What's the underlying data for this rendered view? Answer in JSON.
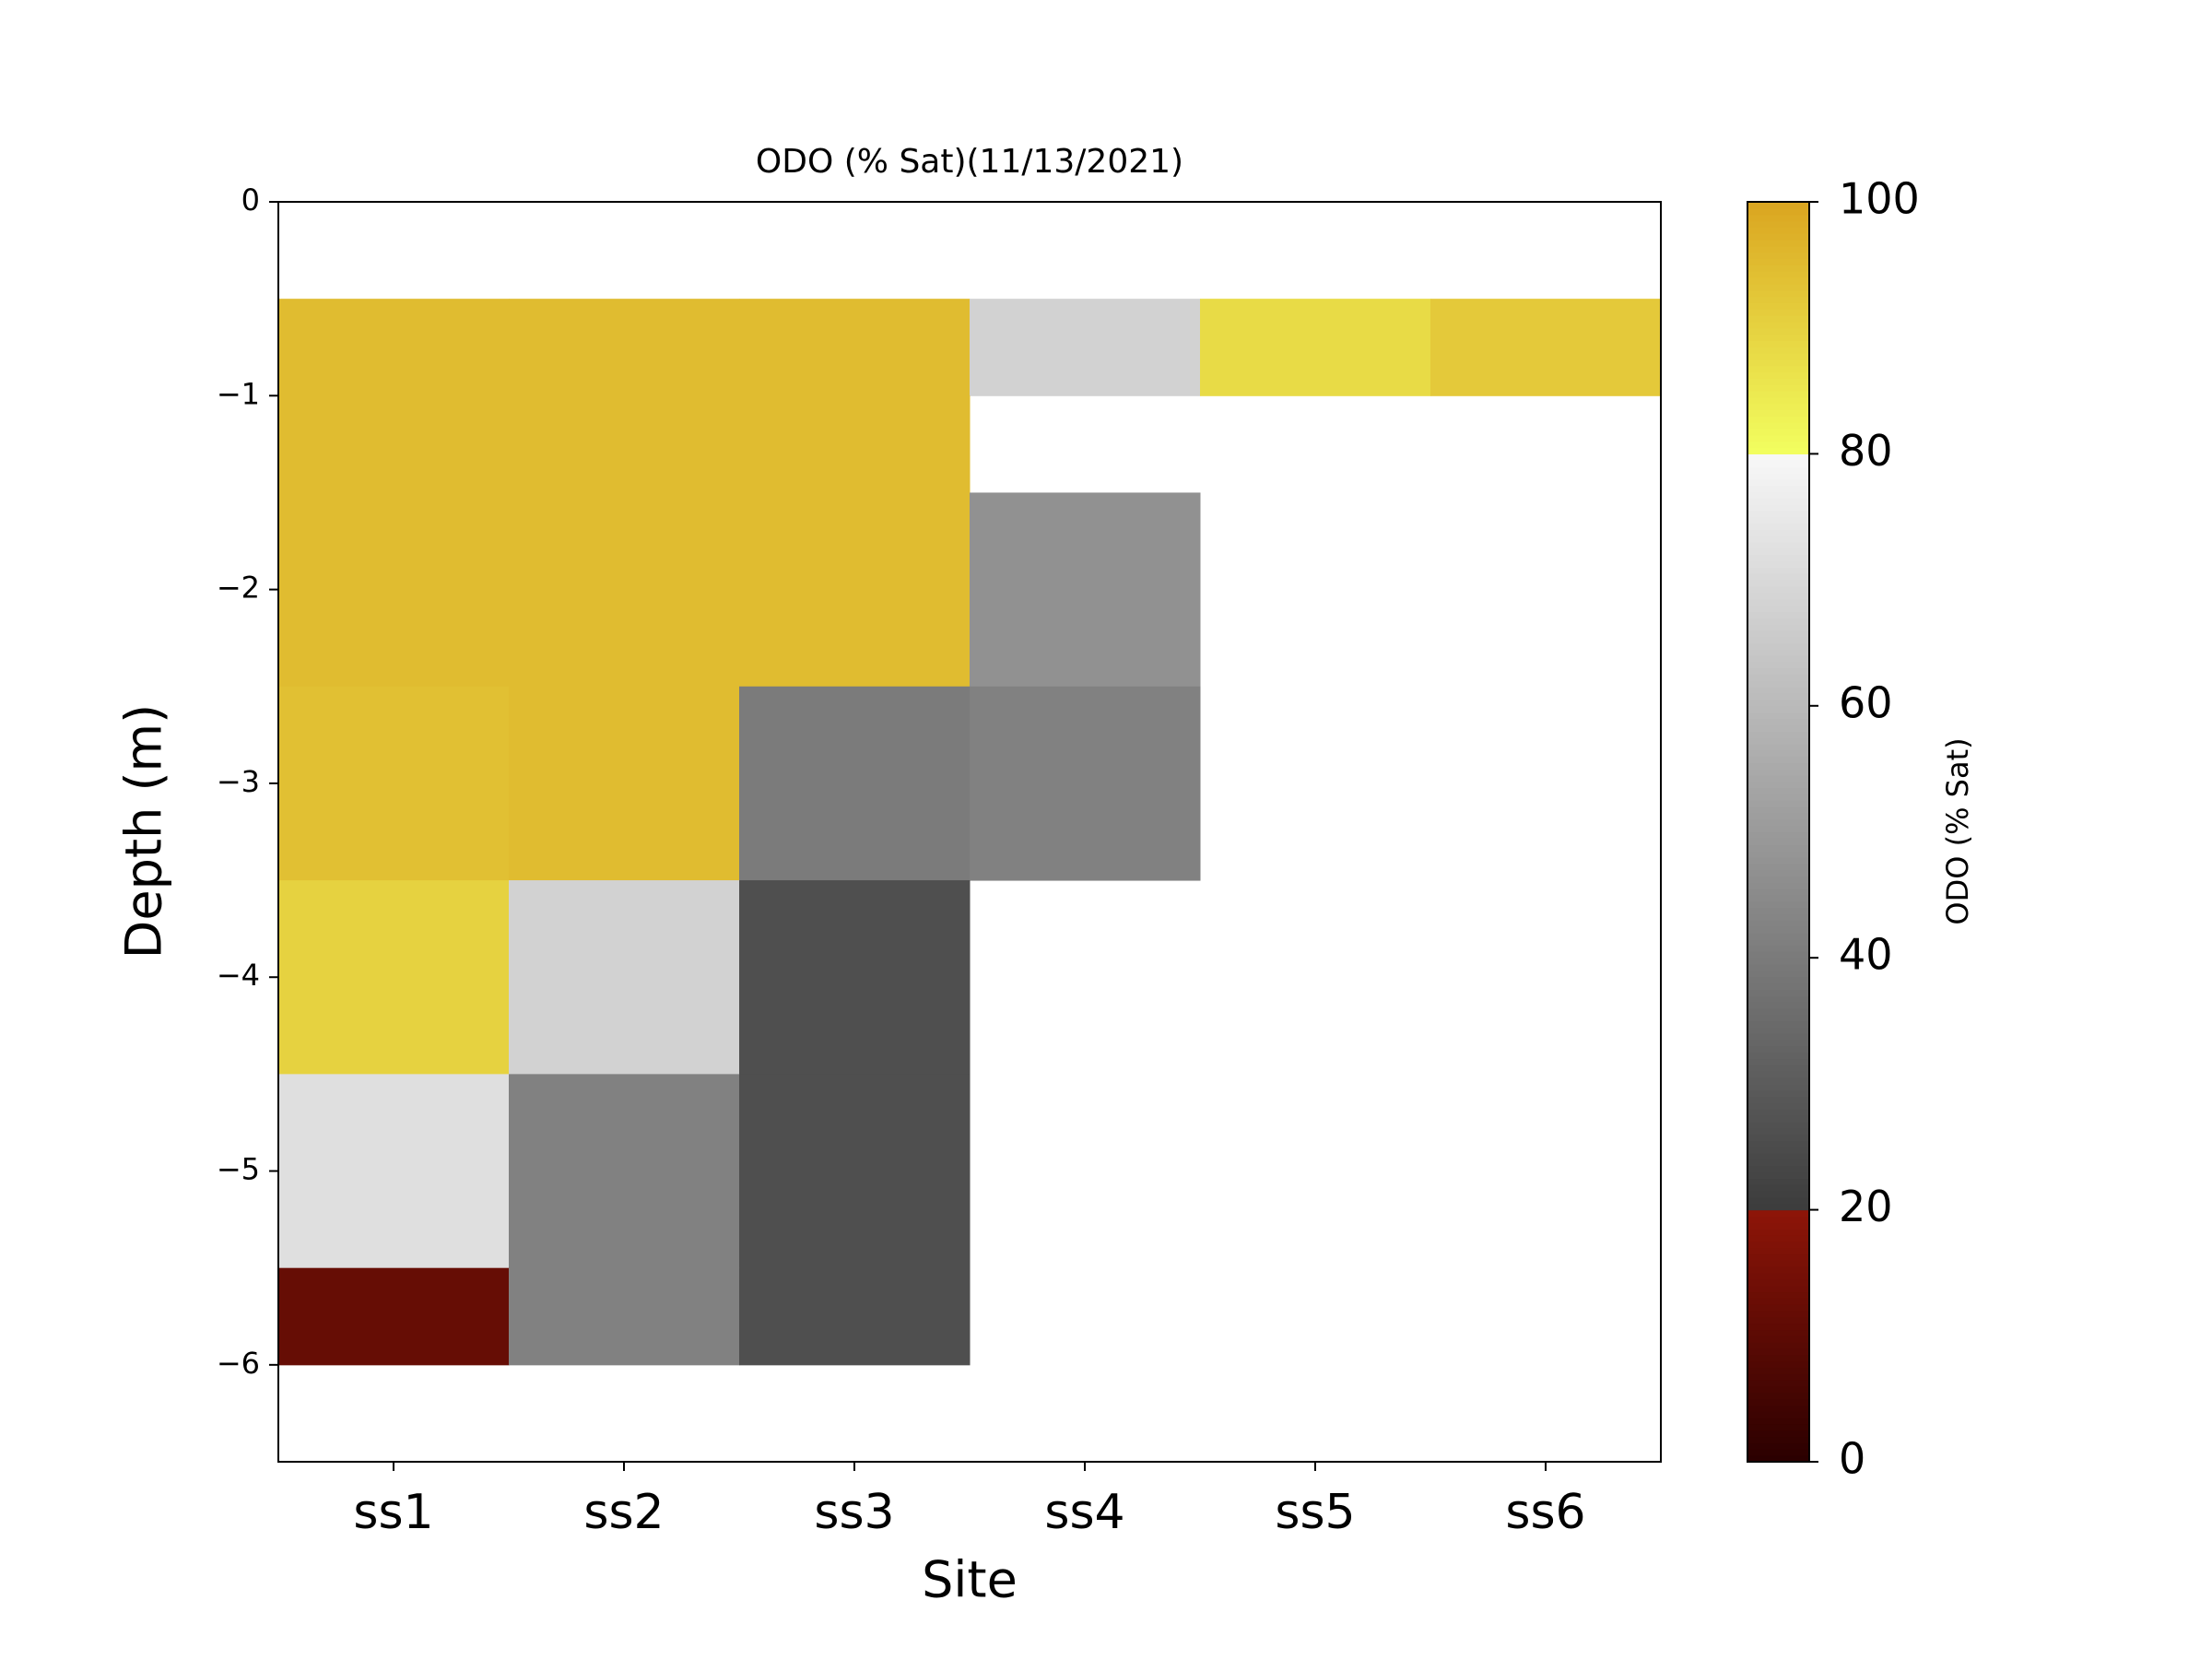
{
  "chart_data": {
    "type": "heatmap",
    "title": "ODO (% Sat)(11/13/2021)",
    "x_label": "Site",
    "y_label": "Depth (m)",
    "categories": [
      "ss1",
      "ss2",
      "ss3",
      "ss4",
      "ss5",
      "ss6"
    ],
    "y_edges": [
      -0.5,
      -1,
      -1.5,
      -2.5,
      -3.5,
      -4.5,
      -5.5,
      -6
    ],
    "z": [
      [
        95,
        95,
        95,
        68,
        88,
        92
      ],
      [
        95,
        95,
        95,
        null,
        null,
        null
      ],
      [
        95,
        95,
        95,
        47,
        null,
        null
      ],
      [
        94,
        95,
        40,
        42,
        null,
        null
      ],
      [
        90,
        68,
        26,
        null,
        null,
        null
      ],
      [
        72,
        42,
        26,
        null,
        null,
        null
      ],
      [
        12,
        42,
        26,
        null,
        null,
        null
      ]
    ],
    "ylim": [
      -6.5,
      0
    ],
    "yticks": [
      0,
      {
        "value": -1,
        "label": "−1"
      },
      {
        "value": -2,
        "label": "−2"
      },
      {
        "value": -3,
        "label": "−3"
      },
      {
        "value": -4,
        "label": "−4"
      },
      {
        "value": -5,
        "label": "−5"
      },
      {
        "value": -6,
        "label": "−6"
      }
    ],
    "colorbar": {
      "label": "ODO (% Sat)",
      "clim": [
        0,
        100
      ],
      "ticks": [
        0,
        20,
        40,
        60,
        80,
        100
      ],
      "stops": [
        [
          0,
          "#2a0000"
        ],
        [
          20,
          "#8e1508"
        ],
        [
          20,
          "#3c3c3c"
        ],
        [
          80,
          "#f8f8f8"
        ],
        [
          80,
          "#f2ff60"
        ],
        [
          100,
          "#daa520"
        ]
      ]
    }
  }
}
